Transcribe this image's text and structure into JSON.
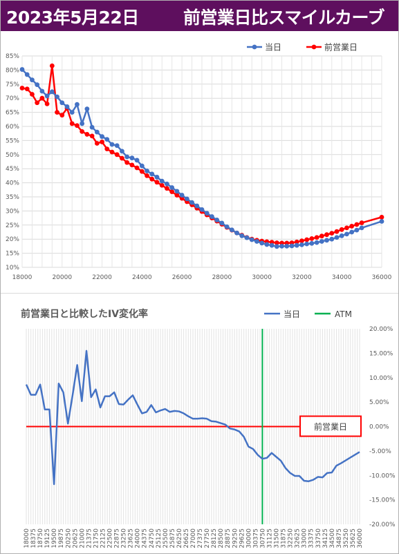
{
  "header": {
    "date": "2023年5月22日",
    "title": "前営業日比スマイルカーブ"
  },
  "colors": {
    "header_bg": "#5e0f5e",
    "today": "#4472c4",
    "prev": "#ff0000",
    "iv_line": "#4472c4",
    "atm": "#00b050",
    "zero_line": "#ff0000"
  },
  "chart_data": [
    {
      "type": "line",
      "title": "",
      "xlabel": "",
      "ylabel": "",
      "xlim": [
        18000,
        36000
      ],
      "ylim": [
        10,
        85
      ],
      "x_ticks": [
        "18000",
        "20000",
        "22000",
        "24000",
        "26000",
        "28000",
        "30000",
        "32000",
        "34000",
        "36000"
      ],
      "y_ticks": [
        "10%",
        "15%",
        "20%",
        "25%",
        "30%",
        "35%",
        "40%",
        "45%",
        "50%",
        "55%",
        "60%",
        "65%",
        "70%",
        "75%",
        "80%",
        "85%"
      ],
      "legend_position": "top-right",
      "grid": true,
      "series": [
        {
          "name": "当日",
          "color": "#4472c4",
          "x": [
            18000,
            18250,
            18500,
            18750,
            19000,
            19250,
            19500,
            19750,
            20000,
            20250,
            20500,
            20750,
            21000,
            21250,
            21500,
            21750,
            22000,
            22250,
            22500,
            22750,
            23000,
            23250,
            23500,
            23750,
            24000,
            24250,
            24500,
            24750,
            25000,
            25250,
            25500,
            25750,
            26000,
            26250,
            26500,
            26750,
            27000,
            27250,
            27500,
            27750,
            28000,
            28250,
            28500,
            28750,
            29000,
            29250,
            29500,
            29750,
            30000,
            30250,
            30500,
            30750,
            31000,
            31250,
            31500,
            31750,
            32000,
            32250,
            32500,
            32750,
            33000,
            33250,
            33500,
            33750,
            34000,
            34250,
            34500,
            34750,
            35000,
            36000
          ],
          "y": [
            80.2,
            78.4,
            76.5,
            74.8,
            72.5,
            70.8,
            72.3,
            70.5,
            68.4,
            67.0,
            65.0,
            67.8,
            61.0,
            66.2,
            59.7,
            58.0,
            56.4,
            55.4,
            53.6,
            53.2,
            51.2,
            49.2,
            48.8,
            48.0,
            46.0,
            44.2,
            43.1,
            42.0,
            40.6,
            39.6,
            38.3,
            37.0,
            35.6,
            34.3,
            33.0,
            31.8,
            30.5,
            29.2,
            28.0,
            26.8,
            25.7,
            24.4,
            23.3,
            22.2,
            21.2,
            20.5,
            19.8,
            19.2,
            18.6,
            18.1,
            17.8,
            17.4,
            17.5,
            17.5,
            17.6,
            17.8,
            18.0,
            18.3,
            18.5,
            18.8,
            19.2,
            19.6,
            20.0,
            20.6,
            21.2,
            21.8,
            22.5,
            23.2,
            24.0,
            26.3
          ]
        },
        {
          "name": "前営業日",
          "color": "#ff0000",
          "x": [
            18000,
            18250,
            18500,
            18750,
            19000,
            19250,
            19500,
            19750,
            20000,
            20250,
            20500,
            20750,
            21000,
            21250,
            21500,
            21750,
            22000,
            22250,
            22500,
            22750,
            23000,
            23250,
            23500,
            23750,
            24000,
            24250,
            24500,
            24750,
            25000,
            25250,
            25500,
            25750,
            26000,
            26250,
            26500,
            26750,
            27000,
            27250,
            27500,
            27750,
            28000,
            28250,
            28500,
            28750,
            29000,
            29250,
            29500,
            29750,
            30000,
            30250,
            30500,
            30750,
            31000,
            31250,
            31500,
            31750,
            32000,
            32250,
            32500,
            32750,
            33000,
            33250,
            33500,
            33750,
            34000,
            34250,
            34500,
            34750,
            35000,
            36000
          ],
          "y": [
            73.6,
            73.3,
            71.4,
            68.4,
            70.0,
            68.0,
            81.5,
            65.0,
            64.0,
            66.4,
            61.0,
            60.3,
            58.2,
            57.2,
            56.6,
            54.0,
            54.5,
            52.0,
            50.9,
            50.0,
            48.7,
            47.2,
            46.3,
            45.3,
            44.0,
            42.5,
            41.3,
            40.2,
            39.1,
            38.0,
            36.8,
            35.6,
            34.5,
            33.3,
            32.2,
            31.0,
            29.8,
            28.6,
            27.5,
            26.4,
            25.3,
            24.2,
            23.2,
            22.2,
            21.4,
            20.6,
            20.0,
            19.6,
            19.3,
            19.1,
            18.9,
            18.7,
            18.6,
            18.6,
            18.7,
            19.0,
            19.4,
            19.8,
            20.2,
            20.6,
            21.1,
            21.6,
            22.1,
            22.7,
            23.4,
            24.0,
            24.6,
            25.2,
            25.8,
            27.8
          ]
        }
      ]
    },
    {
      "type": "line",
      "title": "前営業日と比較したIV変化率",
      "xlabel": "",
      "ylabel": "",
      "xlim": [
        18000,
        36000
      ],
      "ylim": [
        -20,
        20
      ],
      "x_ticks": [
        "18000",
        "18375",
        "18750",
        "19125",
        "19500",
        "19875",
        "20250",
        "20625",
        "21000",
        "21375",
        "21750",
        "22125",
        "22500",
        "22875",
        "23250",
        "23625",
        "24000",
        "24375",
        "24750",
        "25125",
        "25500",
        "25875",
        "26250",
        "26625",
        "27000",
        "27375",
        "27750",
        "28125",
        "28500",
        "28875",
        "29250",
        "29625",
        "30000",
        "30375",
        "30750",
        "31125",
        "31500",
        "31875",
        "32250",
        "32625",
        "33000",
        "33375",
        "33750",
        "34125",
        "34500",
        "34875",
        "35250",
        "35625",
        "36000"
      ],
      "y_ticks": [
        "20.00%",
        "15.00%",
        "10.00%",
        "5.00%",
        "0.00%",
        "-5.00%",
        "-10.00%",
        "-15.00%",
        "-20.00%"
      ],
      "legend_position": "top-right",
      "grid": true,
      "series": [
        {
          "name": "当日",
          "color": "#4472c4",
          "x": [
            18000,
            18250,
            18500,
            18750,
            19000,
            19250,
            19500,
            19750,
            20000,
            20250,
            20500,
            20750,
            21000,
            21250,
            21500,
            21750,
            22000,
            22250,
            22500,
            22750,
            23000,
            23250,
            23500,
            23750,
            24000,
            24250,
            24500,
            24750,
            25000,
            25250,
            25500,
            25750,
            26000,
            26250,
            26500,
            26750,
            27000,
            27250,
            27500,
            27750,
            28000,
            28250,
            28500,
            28750,
            29000,
            29250,
            29500,
            29750,
            30000,
            30250,
            30500,
            30750,
            31000,
            31250,
            31500,
            31750,
            32000,
            32250,
            32500,
            32750,
            33000,
            33250,
            33500,
            33750,
            34000,
            34250,
            34500,
            34750,
            35000,
            36000
          ],
          "y": [
            8.6,
            6.5,
            6.5,
            8.6,
            3.5,
            3.5,
            -11.8,
            8.8,
            7.0,
            0.6,
            6.4,
            12.6,
            5.2,
            15.5,
            6.0,
            7.6,
            3.9,
            6.2,
            6.2,
            7.0,
            4.6,
            4.5,
            5.5,
            6.4,
            4.5,
            2.7,
            3.0,
            4.4,
            2.9,
            3.3,
            3.6,
            3.0,
            3.2,
            3.1,
            2.7,
            2.1,
            1.6,
            1.6,
            1.7,
            1.6,
            1.1,
            1.0,
            0.7,
            0.4,
            -0.4,
            -0.6,
            -1.0,
            -2.1,
            -4.1,
            -4.6,
            -5.8,
            -6.6,
            -6.4,
            -5.4,
            -6.2,
            -7.0,
            -8.5,
            -9.5,
            -10.1,
            -10.1,
            -11.1,
            -11.2,
            -10.9,
            -10.3,
            -10.4,
            -9.5,
            -9.4,
            -8.0,
            -7.5,
            -5.2
          ]
        },
        {
          "name": "ATM",
          "color": "#00b050",
          "x_value": 30750
        }
      ],
      "annotations": [
        {
          "text": "前営業日",
          "y": 0.0
        }
      ]
    }
  ]
}
